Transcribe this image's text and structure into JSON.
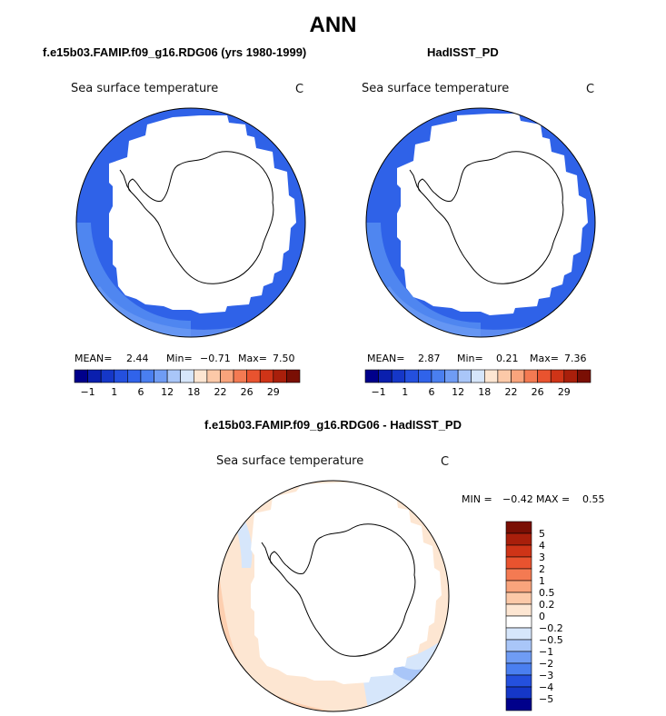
{
  "title": "ANN",
  "colors": {
    "ocean_blue": "#2f62e8",
    "ocean_blue_dark": "#2a52d6",
    "ocean_blue_light": "#4f86f0",
    "land": "#ffffff"
  },
  "panels": [
    {
      "title": "f.e15b03.FAMIP.f09_g16.RDG06 (yrs 1980-1999)",
      "variable": "Sea surface temperature",
      "units": "C",
      "mean_label": "MEAN=",
      "mean_value": "2.44",
      "min_label": "Min=",
      "min_value": "−0.71",
      "max_label": "Max=",
      "max_value": "7.50"
    },
    {
      "title": "HadISST_PD",
      "variable": "Sea surface temperature",
      "units": "C",
      "mean_label": "MEAN=",
      "mean_value": "2.87",
      "min_label": "Min=",
      "min_value": "0.21",
      "max_label": "Max=",
      "max_value": "7.36"
    }
  ],
  "difference": {
    "title": "f.e15b03.FAMIP.f09_g16.RDG06 - HadISST_PD",
    "variable": "Sea surface temperature",
    "units": "C",
    "min_label": "MIN =",
    "min_value": "−0.42",
    "max_label": "MAX =",
    "max_value": "0.55"
  },
  "chart_data": [
    {
      "type": "heatmap",
      "title": "f.e15b03.FAMIP.f09_g16.RDG06 (yrs 1980-1999)",
      "subtitle": "Sea surface temperature",
      "units": "C",
      "projection": "south polar stereographic",
      "stats": {
        "mean": 2.44,
        "min": -0.71,
        "max": 7.5
      },
      "colorbar": {
        "orientation": "horizontal",
        "tick_labels": [
          "−1",
          "1",
          "6",
          "12",
          "18",
          "22",
          "26",
          "29"
        ],
        "colors": [
          "#00008b",
          "#0a1fae",
          "#1537c8",
          "#2450de",
          "#3063ea",
          "#4a7ff0",
          "#6f9cf4",
          "#a9c6f8",
          "#d6e6fb",
          "#fde6d2",
          "#fcc9a8",
          "#f9a47c",
          "#f47a52",
          "#e9532f",
          "#cf3417",
          "#a91f0b",
          "#7a0f04"
        ]
      }
    },
    {
      "type": "heatmap",
      "title": "HadISST_PD",
      "subtitle": "Sea surface temperature",
      "units": "C",
      "projection": "south polar stereographic",
      "stats": {
        "mean": 2.87,
        "min": 0.21,
        "max": 7.36
      },
      "colorbar": {
        "orientation": "horizontal",
        "tick_labels": [
          "−1",
          "1",
          "6",
          "12",
          "18",
          "22",
          "26",
          "29"
        ],
        "colors": [
          "#00008b",
          "#0a1fae",
          "#1537c8",
          "#2450de",
          "#3063ea",
          "#4a7ff0",
          "#6f9cf4",
          "#a9c6f8",
          "#d6e6fb",
          "#fde6d2",
          "#fcc9a8",
          "#f9a47c",
          "#f47a52",
          "#e9532f",
          "#cf3417",
          "#a91f0b",
          "#7a0f04"
        ]
      }
    },
    {
      "type": "heatmap",
      "title": "f.e15b03.FAMIP.f09_g16.RDG06 - HadISST_PD",
      "subtitle": "Sea surface temperature",
      "units": "C",
      "projection": "south polar stereographic",
      "stats": {
        "min": -0.42,
        "max": 0.55
      },
      "colorbar": {
        "orientation": "vertical",
        "tick_labels": [
          "5",
          "4",
          "3",
          "2",
          "1",
          "0.5",
          "0.2",
          "0",
          "−0.2",
          "−0.5",
          "−1",
          "−2",
          "−3",
          "−4",
          "−5"
        ],
        "colors": [
          "#7a0f04",
          "#a91f0b",
          "#cf3417",
          "#e9532f",
          "#f47a52",
          "#f9a47c",
          "#fcc9a8",
          "#fde6d2",
          "#ffffff",
          "#d6e6fb",
          "#a9c6f8",
          "#6f9cf4",
          "#4a7ff0",
          "#2450de",
          "#1537c8",
          "#00008b"
        ]
      }
    }
  ]
}
